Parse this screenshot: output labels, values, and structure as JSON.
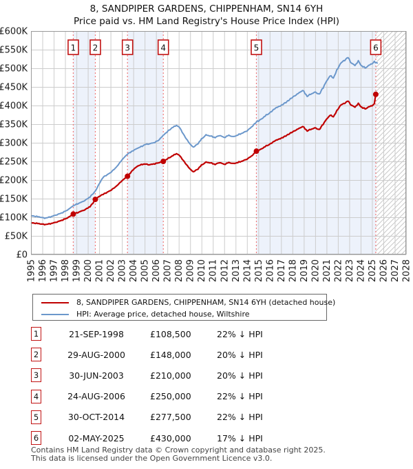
{
  "title": "8, SANDPIPER GARDENS, CHIPPENHAM, SN14 6YH",
  "subtitle": "Price paid vs. HM Land Registry's House Price Index (HPI)",
  "chart_data": {
    "type": "line",
    "x_domain": [
      1995,
      2028
    ],
    "ylim": [
      0,
      600000
    ],
    "y_tick_step": 50000,
    "grid": true,
    "legend_position": "bottom",
    "colors": {
      "price_line": "#c00000",
      "hpi_line": "#6b97cb",
      "sale_dashed": "#f07878",
      "band_fill": "#edf2fb",
      "grid_line": "#cccccc",
      "plot_border": "#999999",
      "hatch_line": "#c9c9c9",
      "marker_box_border": "#c11212"
    },
    "series": [
      {
        "name": "8, SANDPIPER GARDENS, CHIPPENHAM, SN14 6YH (detached house)",
        "color": "#c00000",
        "points": [
          [
            1995.0,
            85000
          ],
          [
            1995.4,
            84000
          ],
          [
            1995.8,
            82500
          ],
          [
            1996.2,
            80500
          ],
          [
            1996.6,
            82000
          ],
          [
            1997.0,
            85000
          ],
          [
            1997.4,
            88500
          ],
          [
            1997.8,
            93000
          ],
          [
            1998.2,
            98000
          ],
          [
            1998.72,
            108500
          ],
          [
            1999.0,
            111500
          ],
          [
            1999.4,
            116000
          ],
          [
            1999.8,
            121000
          ],
          [
            2000.2,
            129000
          ],
          [
            2000.45,
            138000
          ],
          [
            2000.66,
            148000
          ],
          [
            2001.0,
            156000
          ],
          [
            2001.36,
            162000
          ],
          [
            2001.7,
            167000
          ],
          [
            2002.0,
            172000
          ],
          [
            2002.5,
            183000
          ],
          [
            2003.0,
            198000
          ],
          [
            2003.49,
            210000
          ],
          [
            2004.0,
            228000
          ],
          [
            2004.4,
            238000
          ],
          [
            2004.8,
            242000
          ],
          [
            2005.0,
            243000
          ],
          [
            2005.4,
            241000
          ],
          [
            2005.8,
            243000
          ],
          [
            2006.2,
            246000
          ],
          [
            2006.64,
            250000
          ],
          [
            2007.0,
            257000
          ],
          [
            2007.4,
            264000
          ],
          [
            2007.8,
            271000
          ],
          [
            2008.1,
            265000
          ],
          [
            2008.5,
            248000
          ],
          [
            2009.0,
            229000
          ],
          [
            2009.3,
            222000
          ],
          [
            2009.7,
            230000
          ],
          [
            2010.0,
            240000
          ],
          [
            2010.4,
            248000
          ],
          [
            2010.8,
            246000
          ],
          [
            2011.2,
            242000
          ],
          [
            2011.6,
            247000
          ],
          [
            2012.0,
            242000
          ],
          [
            2012.4,
            247000
          ],
          [
            2012.8,
            244000
          ],
          [
            2013.2,
            247000
          ],
          [
            2013.6,
            251000
          ],
          [
            2014.0,
            256000
          ],
          [
            2014.4,
            264000
          ],
          [
            2014.83,
            277500
          ],
          [
            2015.2,
            282000
          ],
          [
            2015.6,
            290000
          ],
          [
            2016.0,
            296000
          ],
          [
            2016.5,
            306000
          ],
          [
            2017.0,
            312000
          ],
          [
            2017.5,
            320000
          ],
          [
            2018.0,
            329000
          ],
          [
            2018.5,
            337000
          ],
          [
            2018.9,
            344000
          ],
          [
            2019.3,
            332000
          ],
          [
            2019.7,
            337000
          ],
          [
            2020.0,
            340000
          ],
          [
            2020.35,
            335000
          ],
          [
            2020.7,
            350000
          ],
          [
            2021.0,
            363000
          ],
          [
            2021.3,
            374000
          ],
          [
            2021.6,
            370000
          ],
          [
            2021.9,
            385000
          ],
          [
            2022.2,
            400000
          ],
          [
            2022.5,
            405000
          ],
          [
            2022.9,
            412000
          ],
          [
            2023.2,
            400000
          ],
          [
            2023.5,
            396000
          ],
          [
            2023.8,
            405000
          ],
          [
            2024.1,
            395000
          ],
          [
            2024.4,
            391000
          ],
          [
            2024.7,
            396000
          ],
          [
            2025.0,
            400000
          ],
          [
            2025.2,
            404000
          ],
          [
            2025.33,
            430000
          ]
        ]
      },
      {
        "name": "HPI: Average price, detached house, Wiltshire",
        "color": "#6b97cb",
        "points": [
          [
            1995.0,
            104000
          ],
          [
            1995.4,
            102500
          ],
          [
            1995.8,
            100500
          ],
          [
            1996.2,
            97500
          ],
          [
            1996.6,
            100000
          ],
          [
            1997.0,
            104000
          ],
          [
            1997.4,
            108000
          ],
          [
            1997.8,
            113000
          ],
          [
            1998.2,
            119000
          ],
          [
            1998.72,
            131000
          ],
          [
            1999.0,
            135000
          ],
          [
            1999.4,
            140000
          ],
          [
            1999.8,
            146000
          ],
          [
            2000.2,
            155000
          ],
          [
            2000.66,
            170000
          ],
          [
            2001.0,
            190000
          ],
          [
            2001.36,
            208000
          ],
          [
            2001.7,
            214000
          ],
          [
            2002.0,
            220000
          ],
          [
            2002.5,
            234000
          ],
          [
            2003.0,
            254000
          ],
          [
            2003.49,
            270000
          ],
          [
            2004.0,
            279000
          ],
          [
            2004.4,
            286000
          ],
          [
            2004.8,
            291000
          ],
          [
            2005.0,
            295000
          ],
          [
            2005.4,
            297000
          ],
          [
            2005.8,
            300000
          ],
          [
            2006.2,
            306000
          ],
          [
            2006.64,
            320000
          ],
          [
            2007.0,
            330000
          ],
          [
            2007.4,
            340000
          ],
          [
            2007.8,
            347000
          ],
          [
            2008.1,
            340000
          ],
          [
            2008.5,
            318000
          ],
          [
            2009.0,
            296000
          ],
          [
            2009.3,
            288000
          ],
          [
            2009.7,
            298000
          ],
          [
            2010.0,
            310000
          ],
          [
            2010.4,
            321000
          ],
          [
            2010.8,
            318000
          ],
          [
            2011.2,
            314000
          ],
          [
            2011.6,
            320000
          ],
          [
            2012.0,
            314000
          ],
          [
            2012.4,
            320000
          ],
          [
            2012.8,
            316000
          ],
          [
            2013.2,
            321000
          ],
          [
            2013.6,
            326000
          ],
          [
            2014.0,
            332000
          ],
          [
            2014.4,
            342000
          ],
          [
            2014.83,
            356000
          ],
          [
            2015.2,
            362000
          ],
          [
            2015.6,
            372000
          ],
          [
            2016.0,
            380000
          ],
          [
            2016.5,
            393000
          ],
          [
            2017.0,
            400000
          ],
          [
            2017.5,
            410000
          ],
          [
            2018.0,
            422000
          ],
          [
            2018.5,
            432000
          ],
          [
            2018.9,
            441000
          ],
          [
            2019.3,
            425000
          ],
          [
            2019.7,
            432000
          ],
          [
            2020.0,
            436000
          ],
          [
            2020.35,
            430000
          ],
          [
            2020.7,
            448000
          ],
          [
            2021.0,
            465000
          ],
          [
            2021.3,
            480000
          ],
          [
            2021.6,
            474000
          ],
          [
            2021.9,
            494000
          ],
          [
            2022.2,
            512000
          ],
          [
            2022.5,
            520000
          ],
          [
            2022.9,
            529000
          ],
          [
            2023.2,
            513000
          ],
          [
            2023.5,
            508000
          ],
          [
            2023.8,
            519000
          ],
          [
            2024.1,
            506000
          ],
          [
            2024.4,
            501000
          ],
          [
            2024.7,
            507000
          ],
          [
            2025.0,
            513000
          ],
          [
            2025.2,
            517000
          ],
          [
            2025.5,
            513000
          ]
        ]
      }
    ],
    "sales": [
      {
        "n": 1,
        "year": 1998.72,
        "price": 108500
      },
      {
        "n": 2,
        "year": 2000.66,
        "price": 148000
      },
      {
        "n": 3,
        "year": 2003.49,
        "price": 210000
      },
      {
        "n": 4,
        "year": 2006.64,
        "price": 250000
      },
      {
        "n": 5,
        "year": 2014.83,
        "price": 277500
      },
      {
        "n": 6,
        "year": 2025.33,
        "price": 430000
      }
    ],
    "shaded_band_pairs": [
      [
        0,
        1
      ],
      [
        2,
        3
      ],
      [
        4,
        5
      ]
    ],
    "future_hatch_from_sale": 6
  },
  "legend": {
    "items": [
      {
        "label": "8, SANDPIPER GARDENS, CHIPPENHAM, SN14 6YH (detached house)"
      },
      {
        "label": "HPI: Average price, detached house, Wiltshire"
      }
    ]
  },
  "table": {
    "rows": [
      {
        "n": "1",
        "date": "21-SEP-1998",
        "price": "£108,500",
        "hpi": "22% ↓ HPI"
      },
      {
        "n": "2",
        "date": "29-AUG-2000",
        "price": "£148,000",
        "hpi": "20% ↓ HPI"
      },
      {
        "n": "3",
        "date": "30-JUN-2003",
        "price": "£210,000",
        "hpi": "20% ↓ HPI"
      },
      {
        "n": "4",
        "date": "24-AUG-2006",
        "price": "£250,000",
        "hpi": "22% ↓ HPI"
      },
      {
        "n": "5",
        "date": "30-OCT-2014",
        "price": "£277,500",
        "hpi": "22% ↓ HPI"
      },
      {
        "n": "6",
        "date": "02-MAY-2025",
        "price": "£430,000",
        "hpi": "17% ↓ HPI"
      }
    ]
  },
  "footer": {
    "line1": "Contains HM Land Registry data © Crown copyright and database right 2025.",
    "line2": "This data is licensed under the Open Government Licence v3.0."
  }
}
